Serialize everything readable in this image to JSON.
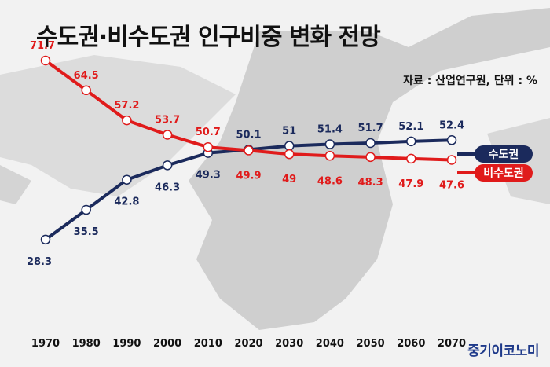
{
  "title": "수도권·비수도권 인구비중 변화 전망",
  "source": "자료 : 산업연구원, 단위 : %",
  "brand": "중기이코노미",
  "colors": {
    "capital": "#1b2a5c",
    "non_capital": "#e01b1b",
    "background": "#f2f2f2"
  },
  "chart_data": {
    "type": "line",
    "x": [
      "1970",
      "1980",
      "1990",
      "2000",
      "2010",
      "2020",
      "2030",
      "2040",
      "2050",
      "2060",
      "2070"
    ],
    "series": [
      {
        "name": "수도권",
        "values": [
          28.3,
          35.5,
          42.8,
          46.3,
          49.3,
          50.1,
          51,
          51.4,
          51.7,
          52.1,
          52.4
        ]
      },
      {
        "name": "비수도권",
        "values": [
          71.7,
          64.5,
          57.2,
          53.7,
          50.7,
          49.9,
          49,
          48.6,
          48.3,
          47.9,
          47.6
        ]
      }
    ],
    "value_labels": [
      [
        "28.3",
        "35.5",
        "42.8",
        "46.3",
        "49.3",
        "50.1",
        "51",
        "51.4",
        "51.7",
        "52.1",
        "52.4"
      ],
      [
        "71.7",
        "64.5",
        "57.2",
        "53.7",
        "50.7",
        "49.9",
        "49",
        "48.6",
        "48.3",
        "47.9",
        "47.6"
      ]
    ],
    "grid": false,
    "legend": "right"
  }
}
